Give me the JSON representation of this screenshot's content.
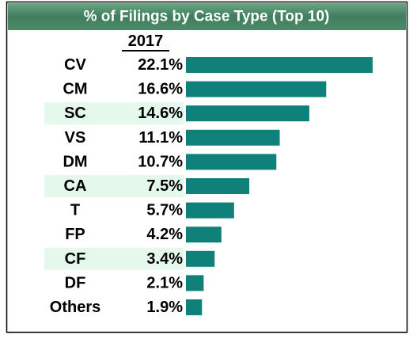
{
  "chart_data": {
    "type": "bar",
    "orientation": "horizontal",
    "title": "% of Filings by Case Type (Top 10)",
    "column_header": "2017",
    "categories": [
      "CV",
      "CM",
      "SC",
      "VS",
      "DM",
      "CA",
      "T",
      "FP",
      "CF",
      "DF",
      "Others"
    ],
    "values": [
      22.1,
      16.6,
      14.6,
      11.1,
      10.7,
      7.5,
      5.7,
      4.2,
      3.4,
      2.1,
      1.9
    ],
    "value_labels": [
      "22.1%",
      "16.6%",
      "14.6%",
      "11.1%",
      "10.7%",
      "7.5%",
      "5.7%",
      "4.2%",
      "3.4%",
      "2.1%",
      "1.9%"
    ],
    "color": "#10807a"
  }
}
